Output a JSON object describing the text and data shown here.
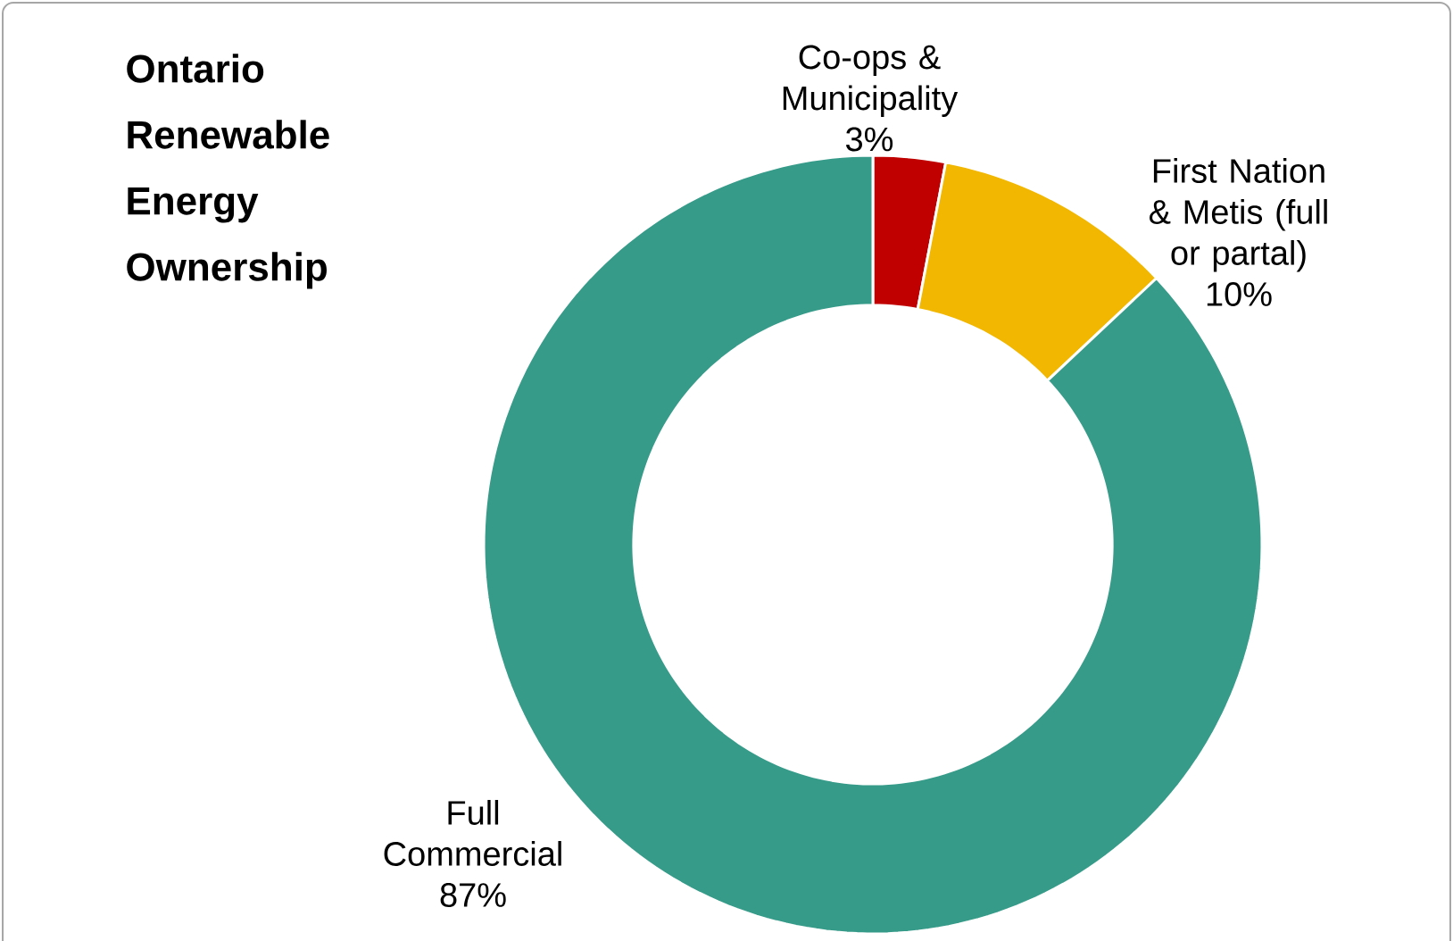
{
  "chart_data": {
    "type": "donut",
    "title": "Ontario Renewable Energy Ownership",
    "categories": [
      "Co-ops & Municipality",
      "First Nation & Metis (full or partal)",
      "Full Commercial"
    ],
    "values": [
      3,
      10,
      87
    ],
    "value_labels": [
      "3%",
      "10%",
      "87%"
    ],
    "colors": [
      "#c00000",
      "#f2b700",
      "#379b8a"
    ]
  }
}
